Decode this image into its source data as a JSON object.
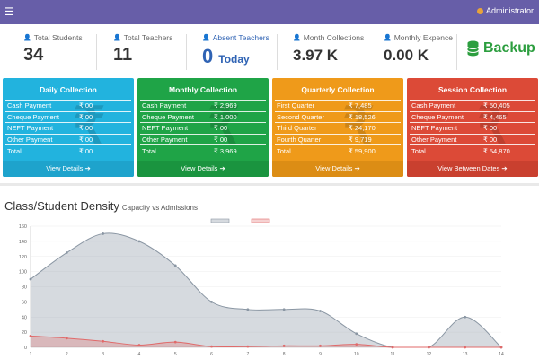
{
  "topbar": {
    "menu_icon": "☰",
    "user": "Administrator"
  },
  "stats": [
    {
      "label": "Total Students",
      "value": "34"
    },
    {
      "label": "Total Teachers",
      "value": "11"
    },
    {
      "label": "Absent Teachers",
      "value": "0",
      "suffix": "Today"
    },
    {
      "label": "Month Collections",
      "value": "3.97 K"
    },
    {
      "label": "Monthly Expence",
      "value": "0.00 K"
    }
  ],
  "backup": {
    "label": "Backup"
  },
  "cards": [
    {
      "title": "Daily Collection",
      "rows": [
        [
          "Cash Payment",
          "₹ 00"
        ],
        [
          "Cheque Payment",
          "₹ 00"
        ],
        [
          "NEFT Payment",
          "₹ 00"
        ],
        [
          "Other Payment",
          "₹ 00"
        ],
        [
          "Total",
          "₹ 00"
        ]
      ],
      "link": "View Details ➔"
    },
    {
      "title": "Monthly Collection",
      "rows": [
        [
          "Cash Payment",
          "₹ 2,969"
        ],
        [
          "Cheque Payment",
          "₹ 1,000"
        ],
        [
          "NEFT Payment",
          "₹ 00"
        ],
        [
          "Other Payment",
          "₹ 00"
        ],
        [
          "Total",
          "₹ 3,969"
        ]
      ],
      "link": "View Details ➔"
    },
    {
      "title": "Quarterly Collection",
      "rows": [
        [
          "First Quarter",
          "₹ 7,485"
        ],
        [
          "Second Quarter",
          "₹ 18,526"
        ],
        [
          "Third Quarter",
          "₹ 24,170"
        ],
        [
          "Fourth Quarter",
          "₹ 9,719"
        ],
        [
          "Total",
          "₹ 59,900"
        ]
      ],
      "link": "View Details ➔"
    },
    {
      "title": "Session Collection",
      "rows": [
        [
          "Cash Payment",
          "₹ 50,405"
        ],
        [
          "Cheque Payment",
          "₹ 4,465"
        ],
        [
          "NEFT Payment",
          "₹ 00"
        ],
        [
          "Other Payment",
          "₹ 00"
        ],
        [
          "Total",
          "₹ 54,870"
        ]
      ],
      "link": "View Between Dates ➔"
    }
  ],
  "chart": {
    "title": "Class/Student Density",
    "subtitle": "Capacity vs Admissions"
  },
  "chart_data": {
    "type": "area",
    "ylim": [
      0,
      160
    ],
    "yticks": [
      "0",
      "20",
      "40",
      "60",
      "80",
      "100",
      "120",
      "140",
      "160"
    ],
    "categories": [
      "1",
      "2",
      "3",
      "4",
      "5",
      "6",
      "7",
      "8",
      "9",
      "10",
      "11",
      "12",
      "13",
      "14"
    ],
    "series": [
      {
        "color": "#8a96a3",
        "values": [
          90,
          125,
          150,
          140,
          108,
          60,
          50,
          50,
          48,
          18,
          0,
          0,
          40,
          0
        ]
      },
      {
        "color": "#e06a6a",
        "values": [
          15,
          12,
          8,
          3,
          7,
          1,
          1,
          2,
          2,
          4,
          0,
          0,
          0,
          0
        ]
      }
    ]
  }
}
